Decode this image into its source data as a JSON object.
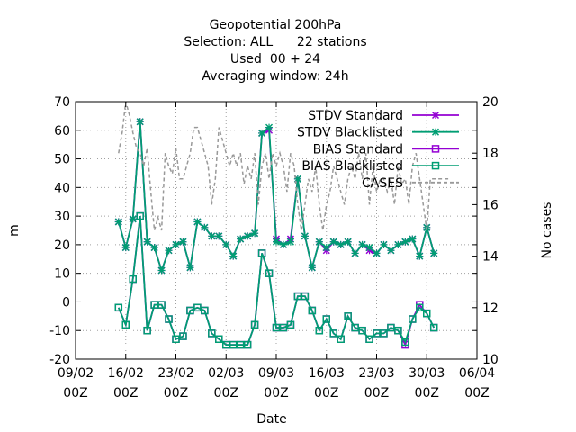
{
  "chart_data": {
    "type": "line",
    "title": [
      "Geopotential 200hPa",
      "Selection: ALL      22 stations",
      "Used  00 + 24",
      "Averaging window: 24h"
    ],
    "xlabel": "Date",
    "ylabel": "m",
    "y2label": "No cases",
    "x_ticks": [
      {
        "day": 0,
        "line1": "09/02",
        "line2": "00Z"
      },
      {
        "day": 7,
        "line1": "16/02",
        "line2": "00Z"
      },
      {
        "day": 14,
        "line1": "23/02",
        "line2": "00Z"
      },
      {
        "day": 21,
        "line1": "02/03",
        "line2": "00Z"
      },
      {
        "day": 28,
        "line1": "09/03",
        "line2": "00Z"
      },
      {
        "day": 35,
        "line1": "16/03",
        "line2": "00Z"
      },
      {
        "day": 42,
        "line1": "23/03",
        "line2": "00Z"
      },
      {
        "day": 49,
        "line1": "30/03",
        "line2": "00Z"
      },
      {
        "day": 56,
        "line1": "06/04",
        "line2": "00Z"
      }
    ],
    "xlim": [
      0,
      56
    ],
    "ylim": [
      -20,
      70
    ],
    "yticks": [
      "-20",
      "-10",
      "0",
      "10",
      "20",
      "30",
      "40",
      "50",
      "60",
      "70"
    ],
    "y2lim": [
      10,
      20
    ],
    "y2ticks": [
      "10",
      "12",
      "14",
      "16",
      "18",
      "20"
    ],
    "grid": true,
    "legend_position": "top-right",
    "x": [
      6,
      7,
      8,
      9,
      10,
      11,
      12,
      13,
      14,
      15,
      16,
      17,
      18,
      19,
      20,
      21,
      22,
      23,
      24,
      25,
      26,
      27,
      28,
      29,
      30,
      31,
      32,
      33,
      34,
      35,
      36,
      37,
      38,
      39,
      40,
      41,
      42,
      43,
      44,
      45,
      46,
      47,
      48,
      49,
      50
    ],
    "series": [
      {
        "name": "STDV Standard",
        "color": "#9400d3",
        "marker": "x",
        "axis": "left",
        "values": [
          28,
          19,
          29,
          63,
          21,
          19,
          11,
          18,
          20,
          21,
          12,
          28,
          26,
          23,
          23,
          20,
          16,
          22,
          23,
          24,
          59,
          60,
          22,
          20,
          22,
          43,
          23,
          12,
          21,
          18,
          21,
          20,
          21,
          17,
          20,
          18,
          17,
          20,
          18,
          20,
          21,
          22,
          16,
          26,
          17
        ]
      },
      {
        "name": "STDV Blacklisted",
        "color": "#009e73",
        "marker": "x",
        "axis": "left",
        "values": [
          28,
          19,
          29,
          63,
          21,
          19,
          11,
          18,
          20,
          21,
          12,
          28,
          26,
          23,
          23,
          20,
          16,
          22,
          23,
          24,
          59,
          61,
          21,
          20,
          21,
          43,
          23,
          12,
          21,
          19,
          21,
          20,
          21,
          17,
          20,
          19,
          17,
          20,
          18,
          20,
          21,
          22,
          16,
          26,
          17
        ]
      },
      {
        "name": "BIAS Standard",
        "color": "#9400d3",
        "marker": "square",
        "axis": "left",
        "values": [
          -2,
          -8,
          8,
          30,
          -10,
          -1,
          -1,
          -6,
          -13,
          -12,
          -3,
          -2,
          -3,
          -11,
          -13,
          -15,
          -15,
          -15,
          -15,
          -8,
          17,
          10,
          -9,
          -9,
          -8,
          2,
          2,
          -3,
          -10,
          -6,
          -11,
          -13,
          -5,
          -9,
          -10,
          -13,
          -11,
          -11,
          -9,
          -10,
          -15,
          -6,
          -1,
          -4,
          -9
        ]
      },
      {
        "name": "BIAS Blacklisted",
        "color": "#009e73",
        "marker": "square",
        "axis": "left",
        "values": [
          -2,
          -8,
          8,
          30,
          -10,
          -1,
          -1,
          -6,
          -13,
          -12,
          -3,
          -2,
          -3,
          -11,
          -13,
          -15,
          -15,
          -15,
          -15,
          -8,
          17,
          10,
          -9,
          -9,
          -8,
          2,
          2,
          -3,
          -10,
          -6,
          -11,
          -13,
          -5,
          -9,
          -10,
          -13,
          -11,
          -11,
          -9,
          -10,
          -14,
          -6,
          -2,
          -4,
          -9
        ]
      },
      {
        "name": "CASES",
        "color": "#999999",
        "dash": "4,3",
        "axis": "right",
        "x": [
          6,
          6.5,
          7,
          7.5,
          8,
          8.5,
          9,
          9.5,
          10,
          10.5,
          11,
          11.5,
          12,
          12.5,
          13,
          13.5,
          14,
          14.5,
          15,
          15.5,
          16,
          16.5,
          17,
          17.5,
          18,
          18.5,
          19,
          19.5,
          20,
          20.5,
          21,
          21.5,
          22,
          22.5,
          23,
          23.5,
          24,
          24.5,
          25,
          25.5,
          26,
          26.5,
          27,
          27.5,
          28,
          28.5,
          29,
          29.5,
          30,
          30.5,
          31,
          31.5,
          32,
          32.5,
          33,
          33.5,
          34,
          34.5,
          35,
          35.5,
          36,
          36.5,
          37,
          37.5,
          38,
          38.5,
          39,
          39.5,
          40,
          40.5,
          41,
          41.5,
          42,
          42.5,
          43,
          43.5,
          44,
          44.5,
          45,
          45.5,
          46,
          46.5,
          47,
          47.5,
          48,
          48.5,
          49,
          49.5,
          50,
          50.5,
          51,
          51.5,
          52
        ],
        "values": [
          18.0,
          18.8,
          20.0,
          19.5,
          18.8,
          18.2,
          18.0,
          17.5,
          18.2,
          16.5,
          15.0,
          15.5,
          15.0,
          18.0,
          17.5,
          17.2,
          18.2,
          17.0,
          17.0,
          17.5,
          18.0,
          19.0,
          19.0,
          18.5,
          18.0,
          17.5,
          16.0,
          17.0,
          19.0,
          18.5,
          18.0,
          17.5,
          18.0,
          17.5,
          18.0,
          16.8,
          17.5,
          17.0,
          18.0,
          16.0,
          17.5,
          18.0,
          17.0,
          18.0,
          17.5,
          18.0,
          17.5,
          16.5,
          18.0,
          17.5,
          16.0,
          15.0,
          16.0,
          17.0,
          16.5,
          17.5,
          16.0,
          15.0,
          16.0,
          16.5,
          17.5,
          17.0,
          16.5,
          16.0,
          17.0,
          17.5,
          17.0,
          18.0,
          17.0,
          18.0,
          16.0,
          17.5,
          16.5,
          17.0,
          17.0,
          16.5,
          17.0,
          16.0,
          17.5,
          16.8,
          17.0,
          16.0,
          17.5,
          18.0,
          17.0,
          16.0,
          15.0,
          17.0,
          17.0,
          17.0,
          17.0,
          17.0,
          17.0
        ]
      }
    ]
  }
}
